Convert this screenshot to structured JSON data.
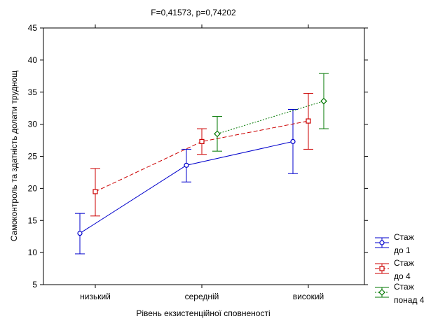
{
  "chart_data": {
    "type": "line",
    "title": "F=0,41573, p=0,74202",
    "xlabel": "Рівень екзистенційної сповненості",
    "ylabel": "Самоконтроль та здатність долати труднощ",
    "categories": [
      "низький",
      "середній",
      "високий"
    ],
    "ylim": [
      5,
      45
    ],
    "yticks": [
      "5",
      "10",
      "15",
      "20",
      "25",
      "30",
      "35",
      "40",
      "45"
    ],
    "grid": false,
    "legend_position": "right",
    "series": [
      {
        "name": "Стаж до 1",
        "legend_lines": [
          "Стаж",
          "до 1"
        ],
        "color": "#0000cc",
        "line_style": "solid",
        "marker": "circle",
        "values": [
          13.0,
          23.6,
          27.3
        ],
        "err_low": [
          9.8,
          21.0,
          22.3
        ],
        "err_high": [
          16.1,
          26.1,
          32.3
        ]
      },
      {
        "name": "Стаж до 4",
        "legend_lines": [
          "Стаж",
          "до 4"
        ],
        "color": "#cc0000",
        "line_style": "dashed",
        "marker": "square",
        "values": [
          19.5,
          27.3,
          30.5
        ],
        "err_low": [
          15.7,
          25.3,
          26.1
        ],
        "err_high": [
          23.1,
          29.3,
          34.8
        ]
      },
      {
        "name": "Стаж понад 4",
        "legend_lines": [
          "Стаж",
          "понад 4"
        ],
        "color": "#007700",
        "line_style": "dotted",
        "marker": "diamond",
        "values": [
          null,
          28.5,
          33.6
        ],
        "err_low": [
          null,
          25.8,
          29.3
        ],
        "err_high": [
          null,
          31.2,
          37.9
        ]
      }
    ]
  }
}
